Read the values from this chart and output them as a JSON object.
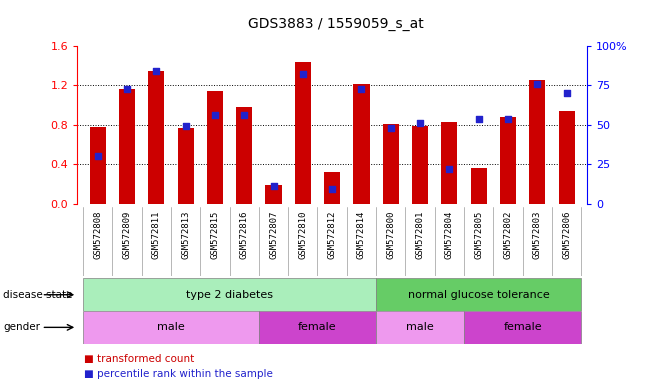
{
  "title": "GDS3883 / 1559059_s_at",
  "samples": [
    "GSM572808",
    "GSM572809",
    "GSM572811",
    "GSM572813",
    "GSM572815",
    "GSM572816",
    "GSM572807",
    "GSM572810",
    "GSM572812",
    "GSM572814",
    "GSM572800",
    "GSM572801",
    "GSM572804",
    "GSM572805",
    "GSM572802",
    "GSM572803",
    "GSM572806"
  ],
  "transformed_count": [
    0.78,
    1.16,
    1.35,
    0.77,
    1.14,
    0.98,
    0.19,
    1.44,
    0.32,
    1.21,
    0.81,
    0.79,
    0.83,
    0.36,
    0.88,
    1.26,
    0.94
  ],
  "percentile_rank": [
    30,
    73,
    84,
    49,
    56,
    56,
    11,
    82,
    9,
    73,
    48,
    51,
    22,
    54,
    54,
    76,
    70
  ],
  "ylim_left": [
    0,
    1.6
  ],
  "ylim_right": [
    0,
    100
  ],
  "yticks_left": [
    0,
    0.4,
    0.8,
    1.2,
    1.6
  ],
  "yticks_right": [
    0,
    25,
    50,
    75,
    100
  ],
  "bar_color": "#cc0000",
  "dot_color": "#2222cc",
  "disease_state": [
    {
      "label": "type 2 diabetes",
      "start": 0,
      "end": 10,
      "color": "#aaeebb"
    },
    {
      "label": "normal glucose tolerance",
      "start": 10,
      "end": 17,
      "color": "#66cc66"
    }
  ],
  "gender": [
    {
      "label": "male",
      "start": 0,
      "end": 6,
      "color": "#ee99ee"
    },
    {
      "label": "female",
      "start": 6,
      "end": 10,
      "color": "#cc44cc"
    },
    {
      "label": "male",
      "start": 10,
      "end": 13,
      "color": "#ee99ee"
    },
    {
      "label": "female",
      "start": 13,
      "end": 17,
      "color": "#cc44cc"
    }
  ],
  "legend": [
    {
      "label": "transformed count",
      "color": "#cc0000"
    },
    {
      "label": "percentile rank within the sample",
      "color": "#2222cc"
    }
  ]
}
